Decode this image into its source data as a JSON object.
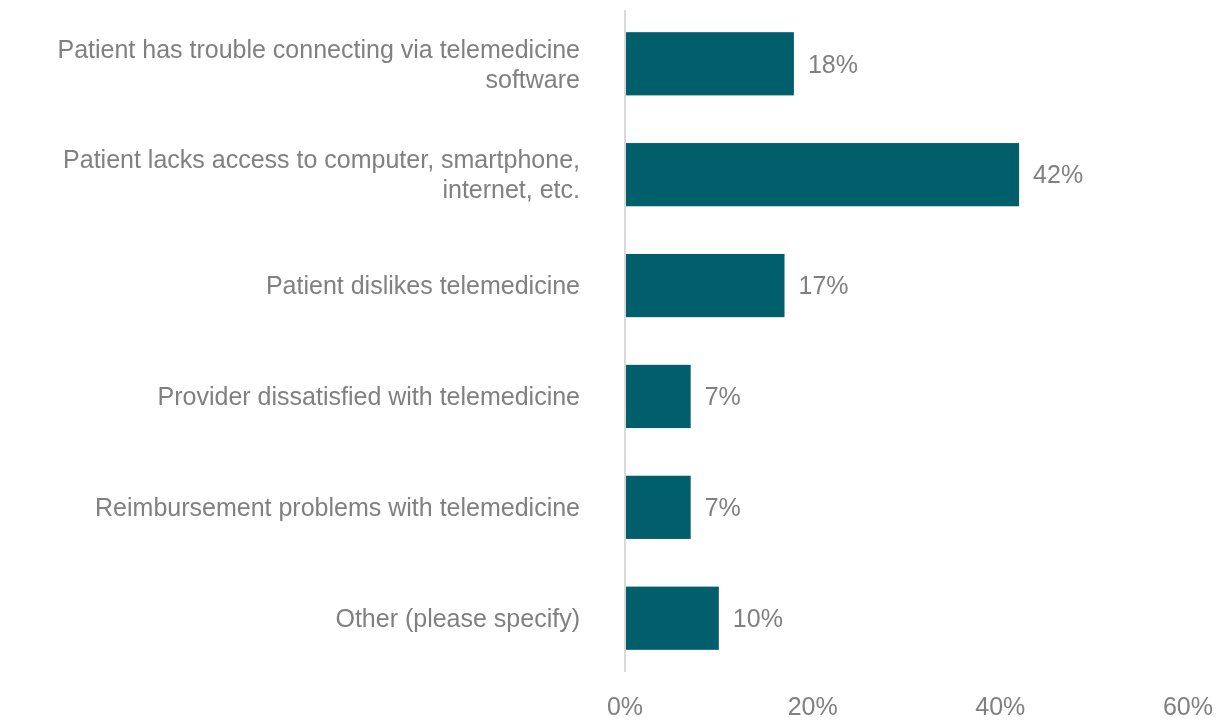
{
  "chart_data": {
    "type": "bar",
    "orientation": "horizontal",
    "categories": [
      "Patient has trouble connecting via telemedicine software",
      "Patient lacks access to computer, smartphone, internet, etc.",
      "Patient dislikes telemedicine",
      "Provider dissatisfied with telemedicine",
      "Reimbursement problems with telemedicine",
      "Other (please specify)"
    ],
    "values": [
      18,
      42,
      17,
      7,
      7,
      10
    ],
    "value_labels": [
      "18%",
      "42%",
      "17%",
      "7%",
      "7%",
      "10%"
    ],
    "color": "#005f6b",
    "xlim": [
      0,
      60
    ],
    "xticks": [
      {
        "value": 0,
        "label": "0%"
      },
      {
        "value": 20,
        "label": "20%"
      },
      {
        "value": 40,
        "label": "40%"
      },
      {
        "value": 60,
        "label": "60%"
      }
    ],
    "grid": false
  }
}
